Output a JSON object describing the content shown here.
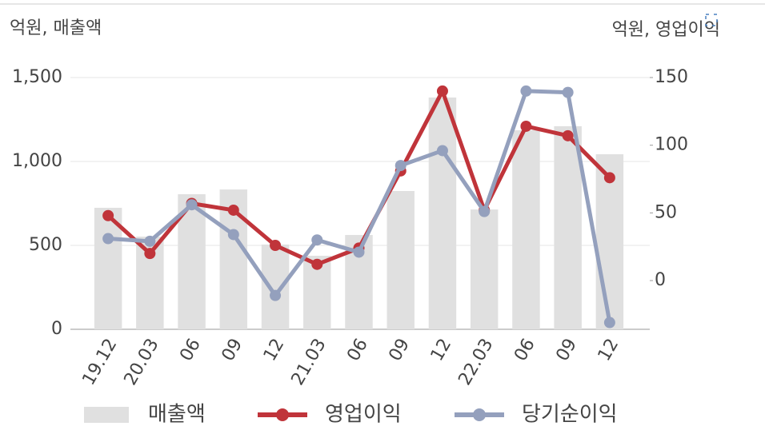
{
  "chart_data": {
    "type": "combo",
    "y_label": "억원, 매출액",
    "y2_label": "억원, 영업이익",
    "categories": [
      "19.12",
      "20.03",
      "06",
      "09",
      "12",
      "21.03",
      "06",
      "09",
      "12",
      "22.03",
      "06",
      "09",
      "12"
    ],
    "series": [
      {
        "name": "매출액",
        "type": "bar",
        "color": "#e0e0e0",
        "values": [
          724,
          552,
          805,
          833,
          505,
          438,
          562,
          824,
          1381,
          714,
          1186,
          1210,
          1043
        ]
      },
      {
        "name": "영업이익",
        "type": "line",
        "axis": "y2",
        "color": "#c0343a",
        "values": [
          48,
          20,
          57,
          52,
          26,
          12,
          24,
          81,
          140,
          52,
          114,
          107,
          76
        ]
      },
      {
        "name": "당기순이익",
        "type": "line",
        "axis": "y2",
        "color": "#94a0bd",
        "values": [
          31,
          29,
          56,
          34,
          -11,
          30,
          21,
          85,
          96,
          51,
          140,
          139,
          -31
        ]
      }
    ],
    "ylim": [
      0,
      1500
    ],
    "yticks": [
      0,
      500,
      {
        "value": 1000,
        "label": "1,000"
      },
      {
        "value": 1500,
        "label": "1,500"
      }
    ],
    "y2lim": [
      -36,
      150
    ],
    "y2ticks": [
      0,
      50,
      100,
      150
    ],
    "grid": true
  }
}
